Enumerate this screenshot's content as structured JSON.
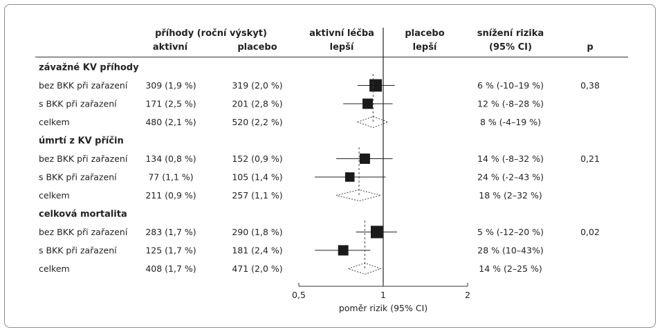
{
  "chart_data": {
    "type": "forest",
    "headers": {
      "events_title": "příhody (roční výskyt)",
      "active": "aktivní",
      "placebo": "placebo",
      "favors_active_line1": "aktivní léčba",
      "favors_active_line2": "lepší",
      "favors_placebo_line1": "placebo",
      "favors_placebo_line2": "lepší",
      "risk_reduction_line1": "snížení rizika",
      "risk_reduction_line2": "(95% CI)",
      "p": "p"
    },
    "xlabel": "poměr rizik (95% CI)",
    "xscale": "log",
    "xlim": [
      0.5,
      2
    ],
    "xticks": [
      {
        "value": 0.5,
        "label": "0,5"
      },
      {
        "value": 1,
        "label": "1"
      },
      {
        "value": 2,
        "label": "2"
      }
    ],
    "groups": [
      {
        "title": "závažné KV příhody",
        "overall_hr": 0.92,
        "rows": [
          {
            "label": "bez BKK při zařazení",
            "active": "309 (1,9 %)",
            "placebo": "319 (2,0 %)",
            "reduction": "6 % (-10–19 %)",
            "p": "0,38",
            "hr": 0.94,
            "lo": 0.81,
            "hi": 1.1,
            "kind": "square",
            "weight": 1.0
          },
          {
            "label": "s BKK při zařazení",
            "active": "171 (2,5 %)",
            "placebo": "201 (2,8 %)",
            "reduction": "12 % (-8–28 %)",
            "p": "",
            "hr": 0.88,
            "lo": 0.72,
            "hi": 1.08,
            "kind": "square",
            "weight": 0.72
          },
          {
            "label": "celkem",
            "active": "480 (2,1 %)",
            "placebo": "520 (2,2 %)",
            "reduction": "8 % (-4–19 %)",
            "p": "",
            "hr": 0.92,
            "lo": 0.81,
            "hi": 1.04,
            "kind": "diamond"
          }
        ]
      },
      {
        "title": "úmrtí z KV příčin",
        "overall_hr": 0.82,
        "rows": [
          {
            "label": "bez BKK při zařazení",
            "active": "134 (0,8 %)",
            "placebo": "152 (0,9 %)",
            "reduction": "14 % (-8–32 %)",
            "p": "0,21",
            "hr": 0.86,
            "lo": 0.68,
            "hi": 1.08,
            "kind": "square",
            "weight": 0.72
          },
          {
            "label": "s BKK při zařazení",
            "active": "77 (1,1 %)",
            "placebo": "105 (1,4 %)",
            "reduction": "24 % (-2–43 %)",
            "p": "",
            "hr": 0.76,
            "lo": 0.57,
            "hi": 1.02,
            "kind": "square",
            "weight": 0.6
          },
          {
            "label": "celkem",
            "active": "211 (0,9 %)",
            "placebo": "257 (1,1 %)",
            "reduction": "18 % (2–32 %)",
            "p": "",
            "hr": 0.82,
            "lo": 0.68,
            "hi": 0.98,
            "kind": "diamond"
          }
        ]
      },
      {
        "title": "celková mortalita",
        "overall_hr": 0.86,
        "rows": [
          {
            "label": "bez BKK při zařazení",
            "active": "283 (1,7 %)",
            "placebo": "290 (1,8 %)",
            "reduction": "5 % (-12–20 %)",
            "p": "0,02",
            "hr": 0.95,
            "lo": 0.8,
            "hi": 1.12,
            "kind": "square",
            "weight": 1.0
          },
          {
            "label": "s BKK při zařazení",
            "active": "125 (1,7 %)",
            "placebo": "181 (2,4 %)",
            "reduction": "28 % (10–43%)",
            "p": "",
            "hr": 0.72,
            "lo": 0.57,
            "hi": 0.9,
            "kind": "square",
            "weight": 0.72
          },
          {
            "label": "celkem",
            "active": "408 (1,7 %)",
            "placebo": "471 (2,0 %)",
            "reduction": "14 % (2–25 %)",
            "p": "",
            "hr": 0.86,
            "lo": 0.75,
            "hi": 0.98,
            "kind": "diamond"
          }
        ]
      }
    ]
  }
}
